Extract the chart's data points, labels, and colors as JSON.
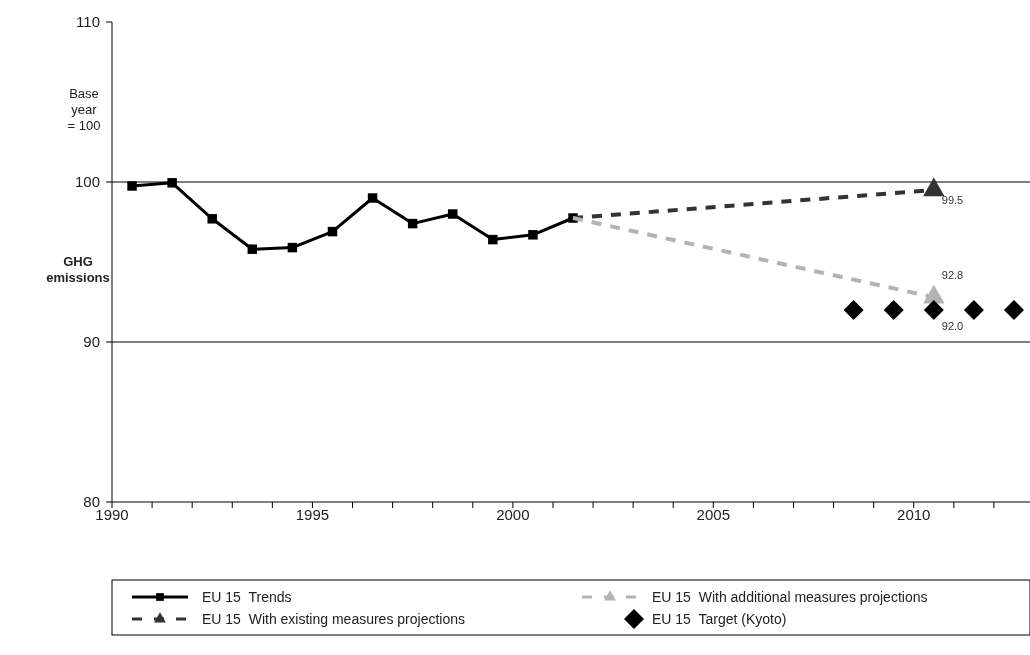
{
  "chart_data": {
    "type": "line",
    "ylabel": "GHG emissions",
    "annotations": [
      "Base year = 100"
    ],
    "xlim": [
      1990,
      2012.9
    ],
    "xticks": [
      1990,
      {
        "value": 1991,
        "label": null
      },
      {
        "value": 1992,
        "label": null
      },
      {
        "value": 1993,
        "label": null
      },
      {
        "value": 1994,
        "label": null
      },
      1995,
      {
        "value": 1996,
        "label": null
      },
      {
        "value": 1997,
        "label": null
      },
      {
        "value": 1998,
        "label": null
      },
      {
        "value": 1999,
        "label": null
      },
      2000,
      {
        "value": 2001,
        "label": null
      },
      {
        "value": 2002,
        "label": null
      },
      {
        "value": 2003,
        "label": null
      },
      {
        "value": 2004,
        "label": null
      },
      2005,
      {
        "value": 2006,
        "label": null
      },
      {
        "value": 2007,
        "label": null
      },
      {
        "value": 2008,
        "label": null
      },
      {
        "value": 2009,
        "label": null
      },
      2010,
      {
        "value": 2011,
        "label": null
      },
      {
        "value": 2012,
        "label": null
      }
    ],
    "ylim": [
      80,
      110
    ],
    "yticks": [
      80,
      90,
      100,
      110
    ],
    "grid": "y",
    "legend": "bottom",
    "series": [
      {
        "name": "EU 15  Trends",
        "color": "#000000",
        "marker": "square",
        "line_style": "solid",
        "x": [
          1990.5,
          1991.5,
          1992.5,
          1993.5,
          1994.5,
          1995.5,
          1996.5,
          1997.5,
          1998.5,
          1999.5,
          2000.5,
          2001.5
        ],
        "values": [
          99.75,
          99.95,
          97.7,
          95.8,
          95.9,
          96.9,
          99.0,
          97.4,
          98.0,
          96.4,
          96.7,
          97.75
        ]
      },
      {
        "name": "EU 15  With existing measures projections",
        "color": "#333333",
        "marker": "none",
        "line_style": "dashed",
        "x": [
          2001.5,
          2010.5
        ],
        "values": [
          97.75,
          99.5
        ]
      },
      {
        "type": "scatter",
        "color": "#333333",
        "marker": "triangle",
        "x": [
          2010.5
        ],
        "values": [
          99.5
        ],
        "value_labels": [
          "99.5"
        ]
      },
      {
        "name": "EU 15  With additional measures projections",
        "color": "#b3b3b3",
        "marker": "none",
        "line_style": "dashed",
        "x": [
          2001.5,
          2010.5
        ],
        "values": [
          97.75,
          92.8
        ]
      },
      {
        "type": "scatter",
        "color": "#b3b3b3",
        "marker": "triangle",
        "x": [
          2010.5
        ],
        "values": [
          92.8
        ],
        "value_labels": [
          "92.8"
        ]
      },
      {
        "name": "EU 15  Target (Kyoto)",
        "type": "scatter",
        "color": "#000000",
        "marker": "diamond",
        "x": [
          2008.5,
          2009.5,
          2010.5,
          2011.5,
          2012.5
        ],
        "values": [
          92.0,
          92.0,
          92.0,
          92.0,
          92.0
        ],
        "value_labels": [
          null,
          null,
          "92.0",
          null,
          null
        ]
      }
    ]
  }
}
